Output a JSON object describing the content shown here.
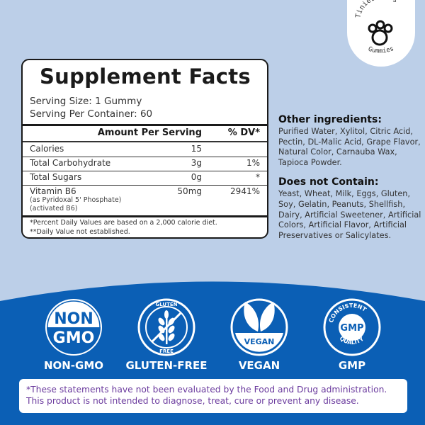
{
  "brand": {
    "top": "Tinies bers",
    "bottom": "Gummies",
    "icon": "paw-icon"
  },
  "facts": {
    "title": "Supplement Facts",
    "serving_size": "Serving Size: 1 Gummy",
    "servings_per_container": "Serving Per Container: 60",
    "header": {
      "amount": "Amount Per Serving",
      "dv": "% DV*"
    },
    "rows": [
      {
        "name": "Calories",
        "amount": "15",
        "dv": ""
      },
      {
        "name": "Total Carbohydrate",
        "amount": "3g",
        "dv": "1%"
      },
      {
        "name": "Total Sugars",
        "amount": "0g",
        "dv": "*"
      },
      {
        "name": "Vitamin B6",
        "amount": "50mg",
        "dv": "2941%",
        "sub1": "(as Pyridoxal 5' Phosphate)",
        "sub2": "(activated B6)"
      }
    ],
    "foot1": "*Percent Daily Values are based on a 2,000 calorie diet.",
    "foot2": "**Daily Value not established."
  },
  "other": {
    "heading": "Other ingredients:",
    "text": "Purified Water, Xylitol, Citric Acid, Pectin, DL-Malic Acid, Grape Flavor, Natural Color, Carnauba Wax, Tapioca Powder."
  },
  "not_contain": {
    "heading": "Does not Contain:",
    "text": "Yeast, Wheat, Milk, Eggs, Gluten, Soy, Gelatin, Peanuts, Shellfish, Dairy, Artificial Sweetener, Artificial Colors, Artificial Flavor, Artificial Preservatives or Salicylates."
  },
  "badges": [
    {
      "label": "NON-GMO",
      "icon": "non-gmo-icon",
      "l1": "NON",
      "l2": "GMO"
    },
    {
      "label": "GLUTEN-FREE",
      "icon": "gluten-free-icon",
      "l1": "GLUTEN",
      "l2": "FREE"
    },
    {
      "label": "VEGAN",
      "icon": "vegan-leaf-icon",
      "l1": "VEGAN"
    },
    {
      "label": "GMP",
      "icon": "gmp-seal-icon",
      "l1": "CONSISTENT",
      "l2": "GMP",
      "l3": "QUALITY"
    }
  ],
  "disclaimer": {
    "line1": "*These statements have not been evaluated by the Food and Drug administration.",
    "line2": "This product is not intended to diagnose, treat, cure or prevent any disease."
  },
  "colors": {
    "background": "#bccfe8",
    "band": "#0b5fb5",
    "disclaimer_text": "#6b3b9e"
  }
}
